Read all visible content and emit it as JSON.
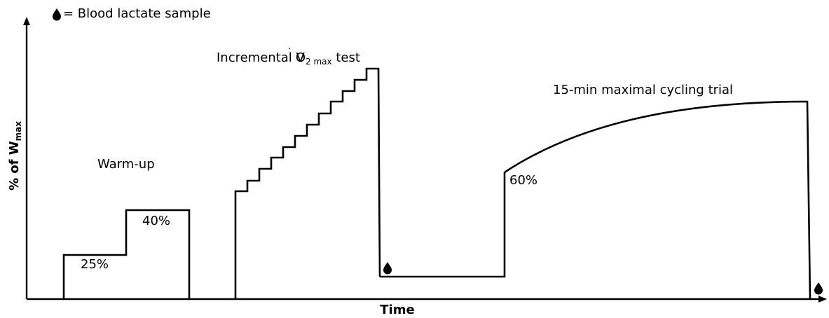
{
  "legend": {
    "icon": "blood-drop-icon",
    "color": "#d9111b",
    "text": "= Blood lactate sample"
  },
  "axes": {
    "x_label": "Time",
    "y_label_main": "% of W",
    "y_label_sub": "max"
  },
  "phases": {
    "warmup": {
      "title": "Warm-up",
      "stage1_label": "25%",
      "stage2_label": "40%"
    },
    "incremental": {
      "title_pre": "Incremental V",
      "title_dot": "̇",
      "title_o": "O",
      "title_sub": "2 max",
      "title_post": " test"
    },
    "recovery": {},
    "trial": {
      "title": "15-min maximal cycling trial",
      "start_label": "60%"
    }
  },
  "samples": [
    {
      "name": "post-incremental-sample"
    },
    {
      "name": "post-trial-sample"
    }
  ]
}
